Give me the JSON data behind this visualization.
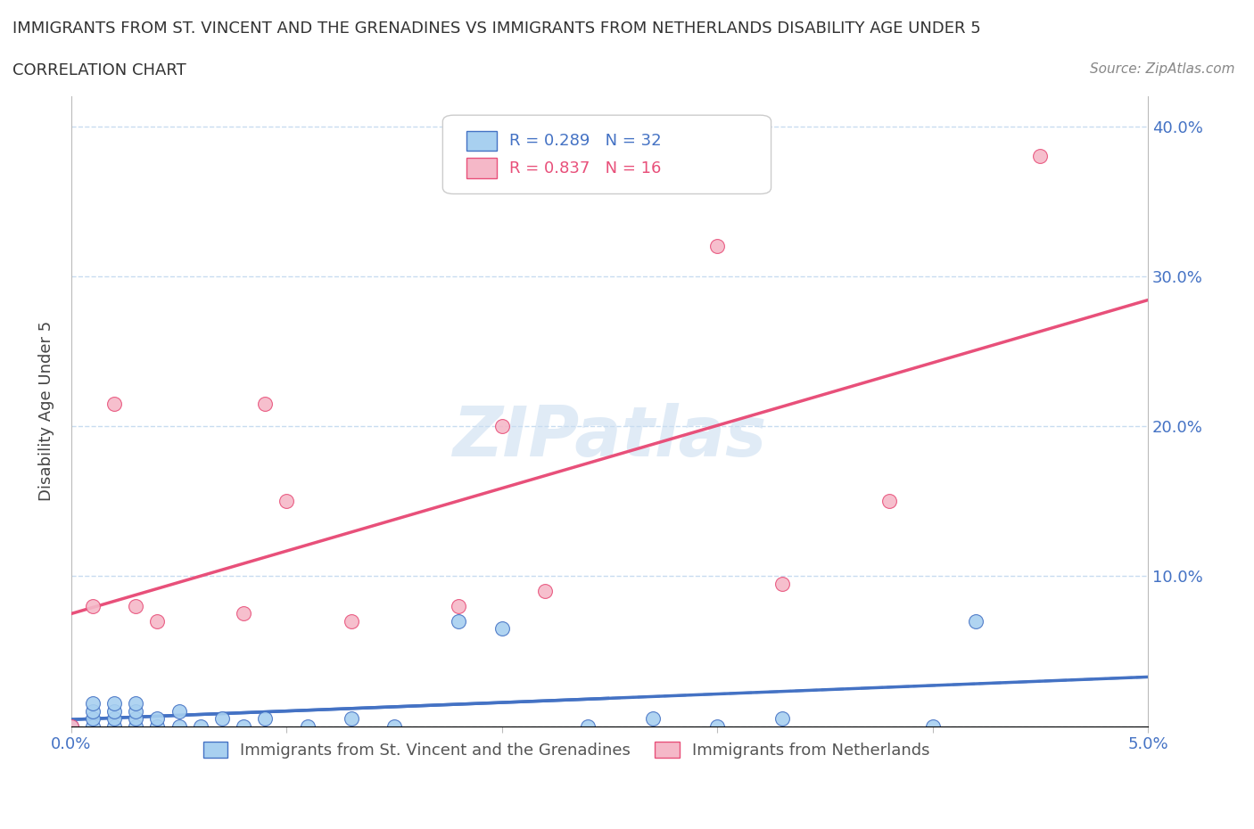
{
  "title": "IMMIGRANTS FROM ST. VINCENT AND THE GRENADINES VS IMMIGRANTS FROM NETHERLANDS DISABILITY AGE UNDER 5",
  "subtitle": "CORRELATION CHART",
  "source": "Source: ZipAtlas.com",
  "ylabel": "Disability Age Under 5",
  "x_min": 0.0,
  "x_max": 0.05,
  "y_min": 0.0,
  "y_max": 0.42,
  "r_vincent": 0.289,
  "n_vincent": 32,
  "r_netherlands": 0.837,
  "n_netherlands": 16,
  "color_vincent": "#A8D0F0",
  "color_netherlands": "#F5B8C8",
  "color_line_vincent": "#4472C4",
  "color_line_netherlands": "#E8507A",
  "watermark": "ZIPatlas",
  "sv_x": [
    0.0,
    0.001,
    0.001,
    0.001,
    0.001,
    0.002,
    0.002,
    0.002,
    0.002,
    0.003,
    0.003,
    0.003,
    0.003,
    0.004,
    0.004,
    0.005,
    0.005,
    0.006,
    0.007,
    0.008,
    0.009,
    0.011,
    0.013,
    0.015,
    0.018,
    0.02,
    0.024,
    0.027,
    0.03,
    0.033,
    0.04,
    0.042
  ],
  "sv_y": [
    0.0,
    0.0,
    0.005,
    0.01,
    0.015,
    0.0,
    0.005,
    0.01,
    0.015,
    0.0,
    0.005,
    0.01,
    0.015,
    0.0,
    0.005,
    0.0,
    0.01,
    0.0,
    0.005,
    0.0,
    0.005,
    0.0,
    0.005,
    0.0,
    0.07,
    0.065,
    0.0,
    0.005,
    0.0,
    0.005,
    0.0,
    0.07
  ],
  "nl_x": [
    0.0,
    0.001,
    0.002,
    0.003,
    0.004,
    0.008,
    0.009,
    0.01,
    0.013,
    0.018,
    0.02,
    0.022,
    0.03,
    0.033,
    0.038,
    0.045
  ],
  "nl_y": [
    0.0,
    0.08,
    0.215,
    0.08,
    0.07,
    0.075,
    0.215,
    0.15,
    0.07,
    0.08,
    0.2,
    0.09,
    0.32,
    0.095,
    0.15,
    0.38
  ],
  "background_color": "#FFFFFF",
  "grid_color": "#C8DCF0"
}
